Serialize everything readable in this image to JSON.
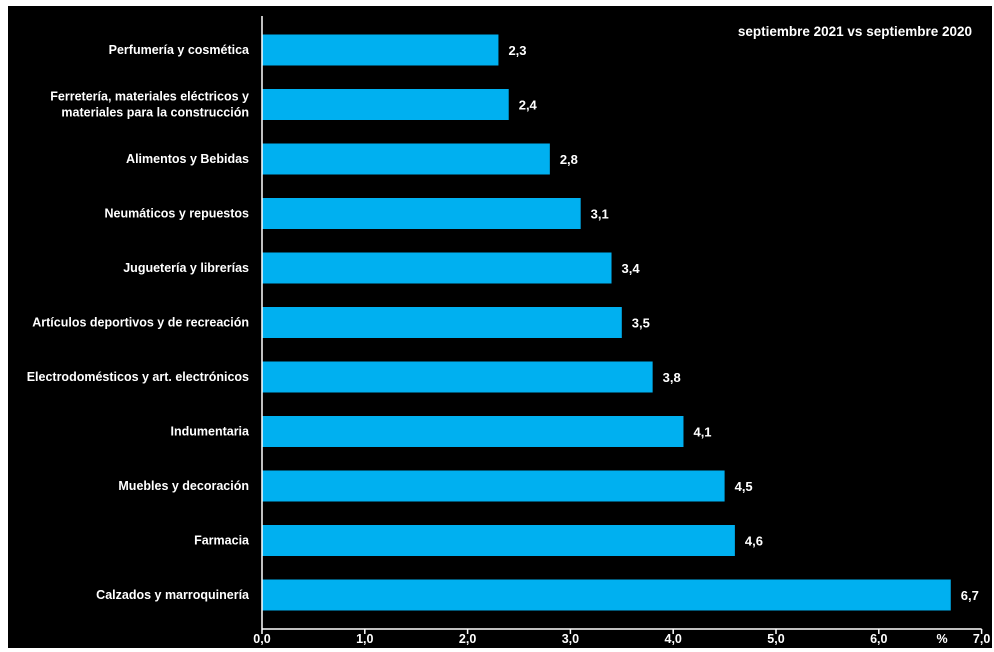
{
  "chart_data": {
    "type": "bar",
    "orientation": "horizontal",
    "title": "septiembre 2021 vs  septiembre 2020",
    "xlabel": "%",
    "ylabel": "",
    "xlim": [
      0,
      7
    ],
    "xticks": [
      "0,0",
      "1,0",
      "2,0",
      "3,0",
      "4,0",
      "5,0",
      "6,0",
      "7,0"
    ],
    "grid": false,
    "categories": [
      [
        "Perfumería y cosmética"
      ],
      [
        "Ferretería, materiales eléctricos y",
        "materiales para la construcción"
      ],
      [
        "Alimentos y Bebidas"
      ],
      [
        "Neumáticos y repuestos"
      ],
      [
        "Juguetería y librerías"
      ],
      [
        "Artículos deportivos y de recreación"
      ],
      [
        "Electrodomésticos y art. electrónicos"
      ],
      [
        "Indumentaria"
      ],
      [
        "Muebles y decoración"
      ],
      [
        "Farmacia"
      ],
      [
        "Calzados y marroquinería"
      ]
    ],
    "values": [
      2.3,
      2.4,
      2.8,
      3.1,
      3.4,
      3.5,
      3.8,
      4.1,
      4.5,
      4.6,
      6.7
    ],
    "value_labels": [
      "2,3",
      "2,4",
      "2,8",
      "3,1",
      "3,4",
      "3,5",
      "3,8",
      "4,1",
      "4,5",
      "4,6",
      "6,7"
    ],
    "colors": {
      "background": "#000000",
      "bar": "#00b0f0",
      "text": "#ffffff",
      "axis": "#ffffff"
    }
  }
}
